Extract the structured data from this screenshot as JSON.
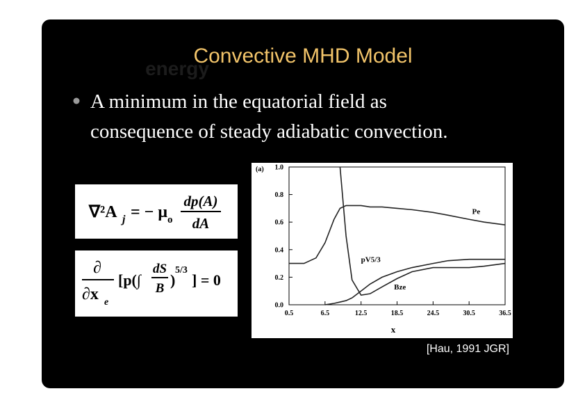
{
  "slide": {
    "title": "Convective MHD Model",
    "ghost_text": "energy",
    "bullet": [
      "A minimum in the equatorial field as",
      "consequence of steady adiabatic convection."
    ],
    "equations": [
      {
        "lhs": "∇²A",
        "lhs_sub": "j",
        "middle": "= − μ",
        "middle_sub": "o",
        "numerator": "dp(A)",
        "denominator": "dA"
      },
      {
        "numerator": "∂",
        "denominator": "∂x",
        "denominator_sub": "e",
        "open": "[p(∫",
        "inner_numerator": "dS",
        "inner_denominator": "B",
        "close": ")",
        "exponent": "5/3",
        "end": "] = 0"
      }
    ],
    "citation": "[Hau, 1991 JGR]"
  },
  "chart_data": {
    "type": "line",
    "panel_label": "(a)",
    "x_label": "x",
    "x": [
      0.5,
      3,
      5,
      6.5,
      8,
      9,
      10,
      11,
      12.5,
      14,
      16,
      18.5,
      21,
      24.5,
      27,
      30.5,
      33,
      36.5
    ],
    "series": [
      {
        "name": "Pe",
        "color": "#222222",
        "values": [
          0.3,
          0.3,
          0.34,
          0.45,
          0.62,
          0.7,
          0.72,
          0.72,
          0.72,
          0.71,
          0.71,
          0.7,
          0.69,
          0.67,
          0.65,
          0.62,
          0.6,
          0.58
        ]
      },
      {
        "name": "pV5/3",
        "color": "#222222",
        "values": [
          null,
          null,
          null,
          0.0,
          0.01,
          0.02,
          0.03,
          0.05,
          0.1,
          0.15,
          0.2,
          0.24,
          0.27,
          0.3,
          0.32,
          0.33,
          0.33,
          0.33
        ]
      },
      {
        "name": "Bze",
        "color": "#222222",
        "values": [
          null,
          null,
          null,
          null,
          null,
          1.0,
          0.5,
          0.18,
          0.07,
          0.08,
          0.13,
          0.19,
          0.24,
          0.27,
          0.27,
          0.27,
          0.28,
          0.3
        ]
      }
    ],
    "xlim": [
      0.5,
      36.5
    ],
    "xticks": [
      0.5,
      6.5,
      12.5,
      18.5,
      24.5,
      30.5,
      36.5
    ],
    "ylim": [
      0,
      1
    ],
    "yticks": [
      {
        "value": 0,
        "label": "0.0"
      },
      0.2,
      0.4,
      0.6,
      0.8,
      {
        "value": 1,
        "label": "1.0"
      }
    ]
  }
}
